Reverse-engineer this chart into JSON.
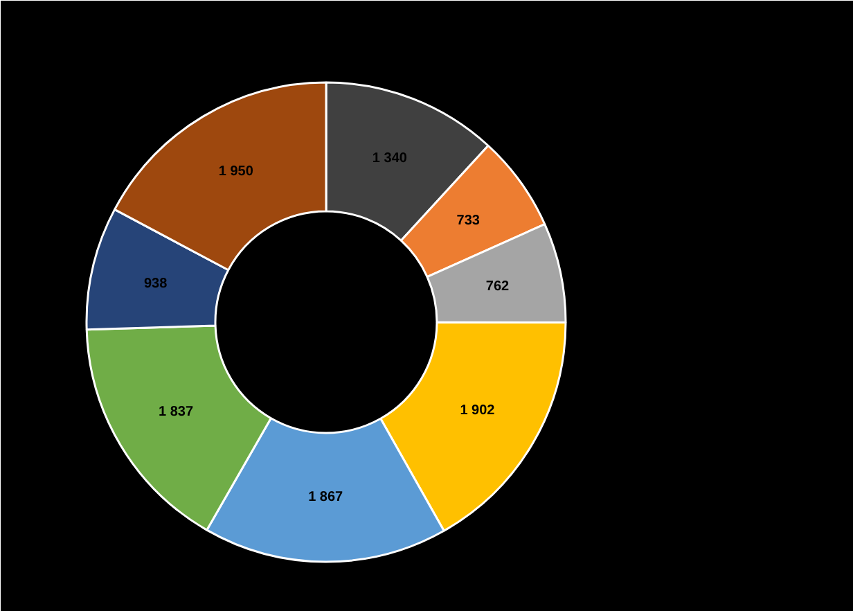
{
  "chart_data": {
    "type": "donut",
    "categories": [
      null,
      null,
      null,
      null,
      null,
      null,
      null,
      null
    ],
    "values": [
      1340,
      733,
      762,
      1902,
      1867,
      1837,
      938,
      1950
    ],
    "value_labels": [
      "1 340",
      "733",
      "762",
      "1 902",
      "1 867",
      "1 837",
      "938",
      "1 950"
    ],
    "colors": [
      "#404040",
      "#ed7d31",
      "#a5a5a5",
      "#ffc000",
      "#5b9bd5",
      "#70ad47",
      "#264478",
      "#9e480e"
    ]
  }
}
